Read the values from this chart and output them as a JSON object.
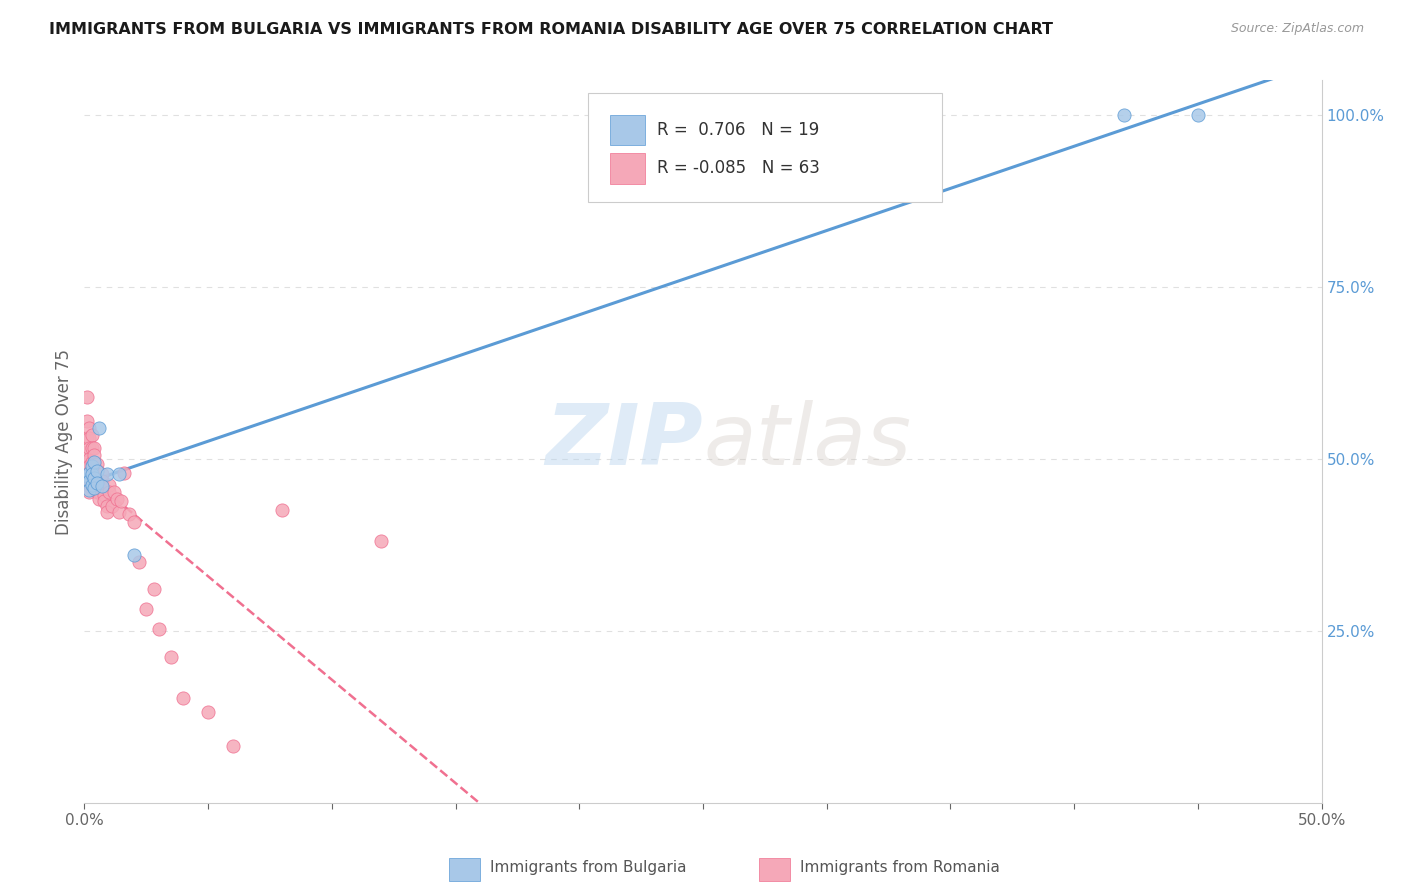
{
  "title": "IMMIGRANTS FROM BULGARIA VS IMMIGRANTS FROM ROMANIA DISABILITY AGE OVER 75 CORRELATION CHART",
  "source": "Source: ZipAtlas.com",
  "ylabel_label": "Disability Age Over 75",
  "xlim": [
    0.0,
    0.5
  ],
  "ylim": [
    0.0,
    1.05
  ],
  "xtick_positions": [
    0.0,
    0.05,
    0.1,
    0.15,
    0.2,
    0.25,
    0.3,
    0.35,
    0.4,
    0.45,
    0.5
  ],
  "yticks_right": [
    0.0,
    0.25,
    0.5,
    0.75,
    1.0
  ],
  "yticklabels_right": [
    "",
    "25.0%",
    "50.0%",
    "75.0%",
    "100.0%"
  ],
  "legend1_r": "0.706",
  "legend1_n": "19",
  "legend2_r": "-0.085",
  "legend2_n": "63",
  "bulgaria_color": "#a8c8e8",
  "romania_color": "#f5a8b8",
  "trendline_bulgaria_color": "#5b9bd5",
  "trendline_romania_color": "#f07090",
  "watermark_zip": "ZIP",
  "watermark_atlas": "atlas",
  "bulgaria_x": [
    0.001,
    0.002,
    0.002,
    0.002,
    0.003,
    0.003,
    0.003,
    0.004,
    0.004,
    0.004,
    0.005,
    0.005,
    0.006,
    0.007,
    0.009,
    0.014,
    0.02,
    0.42,
    0.45
  ],
  "bulgaria_y": [
    0.475,
    0.48,
    0.468,
    0.455,
    0.49,
    0.478,
    0.462,
    0.495,
    0.472,
    0.458,
    0.482,
    0.465,
    0.545,
    0.46,
    0.478,
    0.478,
    0.36,
    1.0,
    1.0
  ],
  "romania_x": [
    0.001,
    0.001,
    0.001,
    0.001,
    0.001,
    0.002,
    0.002,
    0.002,
    0.002,
    0.002,
    0.002,
    0.002,
    0.002,
    0.002,
    0.002,
    0.003,
    0.003,
    0.003,
    0.003,
    0.003,
    0.003,
    0.003,
    0.004,
    0.004,
    0.004,
    0.004,
    0.004,
    0.005,
    0.005,
    0.005,
    0.005,
    0.005,
    0.006,
    0.006,
    0.006,
    0.006,
    0.007,
    0.007,
    0.007,
    0.008,
    0.008,
    0.009,
    0.009,
    0.01,
    0.01,
    0.011,
    0.012,
    0.013,
    0.014,
    0.015,
    0.016,
    0.018,
    0.02,
    0.022,
    0.025,
    0.028,
    0.03,
    0.035,
    0.04,
    0.05,
    0.06,
    0.08,
    0.12
  ],
  "romania_y": [
    0.59,
    0.555,
    0.53,
    0.51,
    0.495,
    0.545,
    0.53,
    0.515,
    0.5,
    0.49,
    0.48,
    0.475,
    0.468,
    0.46,
    0.452,
    0.535,
    0.515,
    0.495,
    0.485,
    0.478,
    0.47,
    0.462,
    0.515,
    0.505,
    0.492,
    0.478,
    0.465,
    0.492,
    0.482,
    0.472,
    0.462,
    0.452,
    0.47,
    0.462,
    0.452,
    0.442,
    0.478,
    0.468,
    0.458,
    0.448,
    0.438,
    0.432,
    0.422,
    0.462,
    0.452,
    0.432,
    0.452,
    0.442,
    0.422,
    0.438,
    0.48,
    0.42,
    0.408,
    0.35,
    0.282,
    0.31,
    0.252,
    0.212,
    0.152,
    0.132,
    0.082,
    0.425,
    0.38
  ],
  "background_color": "#ffffff",
  "grid_color": "#e0e0e0"
}
